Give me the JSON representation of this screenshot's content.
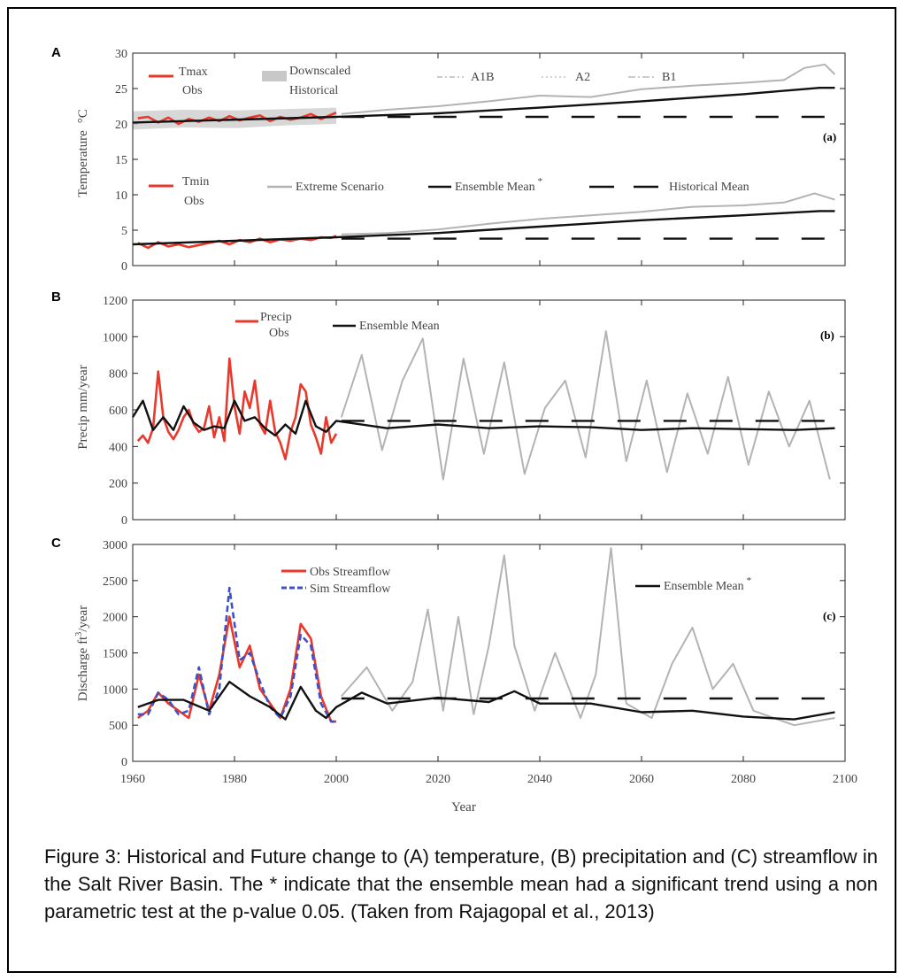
{
  "caption": "Figure 3: Historical and Future change to (A) temperature, (B) precipitation and (C) streamflow in the Salt River Basin. The * indicate that the ensemble mean had a significant trend using a non parametric test at the p-value 0.05. (Taken from Rajagopal et al., 2013)",
  "x_axis": {
    "label": "Year",
    "ticks": [
      1960,
      1980,
      2000,
      2020,
      2040,
      2060,
      2080,
      2100
    ],
    "range": [
      1960,
      2100
    ]
  },
  "colors": {
    "observed": "#e8392c",
    "simulated": "#3b50c9",
    "ensemble": "#111111",
    "scenario": "#b3b3b3",
    "band": "#cdcdcd"
  },
  "chart_data": [
    {
      "panel": "A",
      "tag": "(a)",
      "type": "line",
      "ylabel": "Temperature",
      "ylabel_unit": "°C",
      "ylim": [
        0,
        30
      ],
      "yticks": [
        0,
        5,
        10,
        15,
        20,
        25,
        30
      ],
      "legend": {
        "tmax_1": "Tmax",
        "tmax_2": "Obs",
        "downscaled_1": "Downscaled",
        "downscaled_2": "Historical",
        "a1b": "A1B",
        "a2": "A2",
        "b1": "B1",
        "tmin_1": "Tmin",
        "tmin_2": "Obs",
        "extreme": "Extreme Scenario",
        "ensemble": "Ensemble Mean",
        "ensemble_star": "*",
        "historical": "Historical Mean"
      },
      "series": [
        {
          "name": "Tmax Obs",
          "role": "obs",
          "x": [
            1961,
            1963,
            1965,
            1967,
            1969,
            1971,
            1973,
            1975,
            1977,
            1979,
            1981,
            1983,
            1985,
            1987,
            1989,
            1991,
            1993,
            1995,
            1997,
            1999,
            2000
          ],
          "values": [
            20.8,
            21.0,
            20.2,
            20.9,
            20.0,
            20.7,
            20.3,
            20.9,
            20.4,
            21.1,
            20.5,
            20.9,
            21.2,
            20.4,
            21.0,
            20.6,
            20.9,
            21.4,
            20.7,
            21.3,
            21.6
          ]
        },
        {
          "name": "Tmin Obs",
          "role": "obs",
          "x": [
            1961,
            1963,
            1965,
            1967,
            1969,
            1971,
            1973,
            1975,
            1977,
            1979,
            1981,
            1983,
            1985,
            1987,
            1989,
            1991,
            1993,
            1995,
            1997,
            1999,
            2000
          ],
          "values": [
            3.2,
            2.5,
            3.3,
            2.7,
            3.0,
            2.6,
            2.9,
            3.2,
            3.5,
            3.0,
            3.6,
            3.3,
            3.8,
            3.3,
            3.7,
            3.5,
            3.8,
            3.6,
            4.0,
            3.9,
            4.2
          ]
        },
        {
          "name": "Tmax Ensemble Mean",
          "role": "ensemble",
          "x": [
            1960,
            2000,
            2020,
            2040,
            2060,
            2080,
            2095,
            2098
          ],
          "values": [
            20.2,
            21.0,
            21.5,
            22.3,
            23.2,
            24.2,
            25.1,
            25.1
          ]
        },
        {
          "name": "Tmin Ensemble Mean",
          "role": "ensemble",
          "x": [
            1960,
            2000,
            2020,
            2040,
            2060,
            2080,
            2095,
            2098
          ],
          "values": [
            3.0,
            4.0,
            4.6,
            5.5,
            6.4,
            7.1,
            7.7,
            7.7
          ]
        },
        {
          "name": "Tmax Extreme Scenario",
          "role": "scenario",
          "x": [
            2001,
            2010,
            2020,
            2030,
            2040,
            2050,
            2060,
            2070,
            2080,
            2088,
            2092,
            2096,
            2098
          ],
          "values": [
            21.4,
            22.0,
            22.5,
            23.2,
            24.0,
            23.8,
            24.9,
            25.4,
            25.8,
            26.2,
            27.9,
            28.4,
            27.0
          ]
        },
        {
          "name": "Tmin Extreme Scenario",
          "role": "scenario",
          "x": [
            2001,
            2010,
            2020,
            2030,
            2040,
            2050,
            2060,
            2070,
            2080,
            2088,
            2094,
            2098
          ],
          "values": [
            4.4,
            4.6,
            5.1,
            5.9,
            6.6,
            7.1,
            7.6,
            8.3,
            8.5,
            8.9,
            10.2,
            9.3
          ]
        },
        {
          "name": "Tmax Historical Mean",
          "role": "histmean",
          "x": [
            2001,
            2098
          ],
          "values": [
            21.0,
            21.0
          ]
        },
        {
          "name": "Tmin Historical Mean",
          "role": "histmean",
          "x": [
            2001,
            2098
          ],
          "values": [
            3.8,
            3.8
          ]
        }
      ]
    },
    {
      "panel": "B",
      "tag": "(b)",
      "type": "line",
      "ylabel": "Precip mm/year",
      "ylim": [
        0,
        1200
      ],
      "yticks": [
        0,
        200,
        400,
        600,
        800,
        1000,
        1200
      ],
      "legend": {
        "precip_1": "Precip",
        "precip_2": "Obs",
        "ensemble": "Ensemble Mean"
      },
      "series": [
        {
          "name": "Precip Obs",
          "role": "obs",
          "x": [
            1961,
            1962,
            1963,
            1964,
            1965,
            1966,
            1967,
            1968,
            1969,
            1970,
            1971,
            1972,
            1973,
            1974,
            1975,
            1976,
            1977,
            1978,
            1979,
            1980,
            1981,
            1982,
            1983,
            1984,
            1985,
            1986,
            1987,
            1988,
            1989,
            1990,
            1991,
            1992,
            1993,
            1994,
            1995,
            1996,
            1997,
            1998,
            1999,
            2000
          ],
          "values": [
            430,
            460,
            420,
            500,
            810,
            560,
            480,
            440,
            490,
            560,
            600,
            520,
            480,
            500,
            620,
            450,
            560,
            430,
            880,
            620,
            470,
            700,
            610,
            760,
            520,
            470,
            650,
            480,
            420,
            330,
            480,
            560,
            740,
            700,
            520,
            450,
            360,
            560,
            420,
            470
          ]
        },
        {
          "name": "Precip Ensemble Mean",
          "role": "ensemble",
          "x": [
            1960,
            1962,
            1964,
            1966,
            1968,
            1970,
            1972,
            1974,
            1976,
            1978,
            1980,
            1982,
            1984,
            1986,
            1988,
            1990,
            1992,
            1994,
            1996,
            1998,
            2000,
            2010,
            2020,
            2030,
            2040,
            2050,
            2060,
            2070,
            2080,
            2090,
            2098
          ],
          "values": [
            560,
            650,
            490,
            560,
            490,
            620,
            530,
            490,
            510,
            500,
            650,
            540,
            560,
            500,
            460,
            520,
            470,
            650,
            510,
            480,
            540,
            500,
            520,
            500,
            510,
            505,
            490,
            500,
            495,
            490,
            500
          ]
        },
        {
          "name": "Precip Extreme Scenario",
          "role": "scenario",
          "x": [
            2001,
            2005,
            2009,
            2013,
            2017,
            2021,
            2025,
            2029,
            2033,
            2037,
            2041,
            2045,
            2049,
            2053,
            2057,
            2061,
            2065,
            2069,
            2073,
            2077,
            2081,
            2085,
            2089,
            2093,
            2097
          ],
          "values": [
            560,
            900,
            380,
            760,
            990,
            220,
            880,
            360,
            860,
            250,
            610,
            760,
            340,
            1030,
            320,
            760,
            260,
            690,
            360,
            780,
            300,
            700,
            400,
            650,
            220
          ]
        },
        {
          "name": "Precip Historical Mean",
          "role": "histmean",
          "x": [
            2001,
            2098
          ],
          "values": [
            540,
            540
          ]
        }
      ]
    },
    {
      "panel": "C",
      "tag": "(c)",
      "type": "line",
      "ylabel": "Discharge ft",
      "ylabel_sup": "3",
      "ylabel_unit": "/year",
      "ylim": [
        0,
        3000
      ],
      "yticks": [
        0,
        500,
        1000,
        1500,
        2000,
        2500,
        3000
      ],
      "legend": {
        "obs": "Obs Streamflow",
        "sim": "Sim Streamflow",
        "ensemble": "Ensemble Mean",
        "ensemble_star": "*"
      },
      "series": [
        {
          "name": "Obs Streamflow",
          "role": "obs",
          "x": [
            1961,
            1963,
            1965,
            1967,
            1969,
            1971,
            1973,
            1975,
            1977,
            1979,
            1981,
            1983,
            1985,
            1987,
            1989,
            1991,
            1993,
            1995,
            1997,
            1999,
            2000
          ],
          "values": [
            600,
            700,
            950,
            800,
            700,
            600,
            1200,
            700,
            1200,
            2000,
            1300,
            1600,
            1000,
            800,
            600,
            1000,
            1900,
            1700,
            900,
            550,
            550
          ]
        },
        {
          "name": "Sim Streamflow",
          "role": "sim",
          "x": [
            1961,
            1963,
            1965,
            1967,
            1969,
            1971,
            1973,
            1975,
            1977,
            1979,
            1981,
            1983,
            1985,
            1987,
            1989,
            1991,
            1993,
            1995,
            1997,
            1999,
            2000
          ],
          "values": [
            650,
            650,
            950,
            850,
            650,
            700,
            1300,
            650,
            1000,
            2400,
            1400,
            1500,
            1100,
            750,
            600,
            900,
            1750,
            1600,
            800,
            550,
            550
          ]
        },
        {
          "name": "Streamflow Ensemble Mean",
          "role": "ensemble",
          "x": [
            1961,
            1965,
            1970,
            1975,
            1979,
            1983,
            1987,
            1990,
            1993,
            1996,
            1998,
            2000,
            2005,
            2010,
            2020,
            2030,
            2035,
            2040,
            2050,
            2060,
            2070,
            2080,
            2090,
            2098
          ],
          "values": [
            750,
            850,
            850,
            700,
            1100,
            900,
            750,
            580,
            1030,
            700,
            600,
            750,
            950,
            800,
            880,
            820,
            970,
            800,
            800,
            680,
            700,
            620,
            580,
            680
          ]
        },
        {
          "name": "Streamflow Extreme Scenario",
          "role": "scenario",
          "x": [
            2001,
            2006,
            2011,
            2015,
            2018,
            2021,
            2024,
            2027,
            2030,
            2033,
            2035,
            2039,
            2043,
            2048,
            2051,
            2054,
            2057,
            2062,
            2066,
            2070,
            2074,
            2078,
            2082,
            2090,
            2098
          ],
          "values": [
            900,
            1300,
            700,
            1100,
            2100,
            700,
            2000,
            650,
            1600,
            2850,
            1600,
            700,
            1500,
            600,
            1200,
            2950,
            800,
            600,
            1350,
            1850,
            1000,
            1350,
            700,
            500,
            600
          ]
        },
        {
          "name": "Streamflow Historical Mean",
          "role": "histmean",
          "x": [
            2001,
            2098
          ],
          "values": [
            870,
            870
          ]
        }
      ]
    }
  ]
}
